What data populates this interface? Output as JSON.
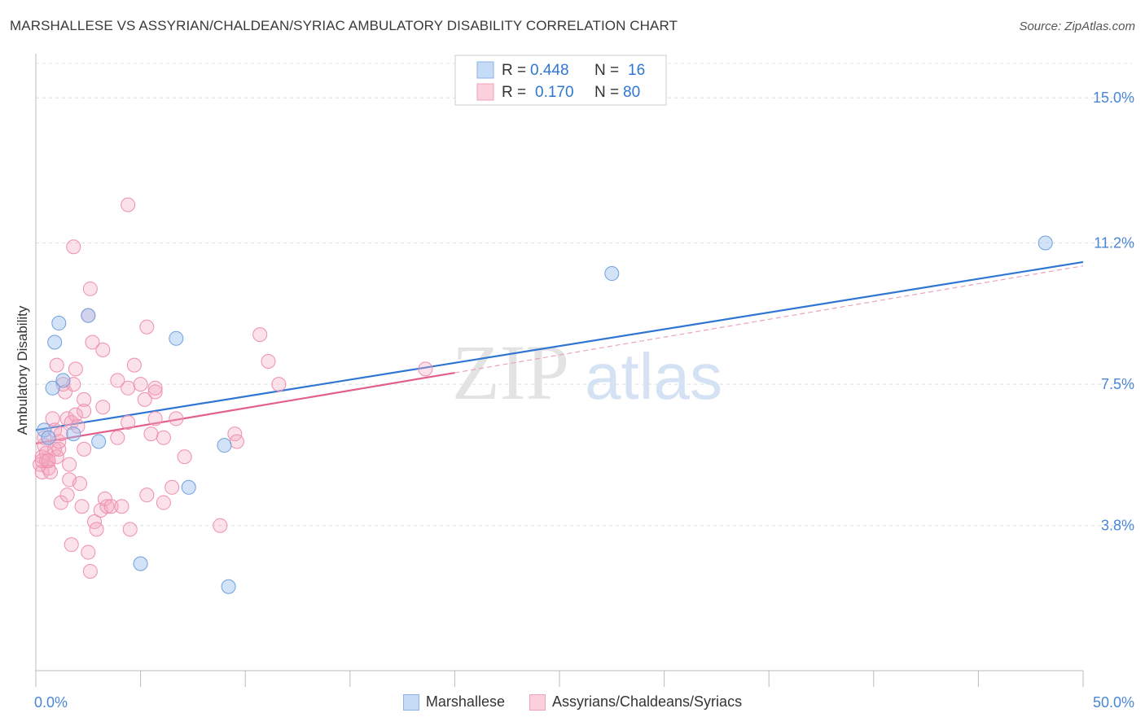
{
  "header": {
    "title": "MARSHALLESE VS ASSYRIAN/CHALDEAN/SYRIAC AMBULATORY DISABILITY CORRELATION CHART",
    "source": "Source: ZipAtlas.com"
  },
  "watermark": {
    "zip": "ZIP",
    "atlas": "atlas"
  },
  "legend": {
    "r_label": "R =",
    "n_label": "N =",
    "rows": [
      {
        "r": "0.448",
        "n": "16"
      },
      {
        "r": "0.170",
        "n": "80"
      }
    ]
  },
  "chart_data": {
    "type": "scatter",
    "title": "MARSHALLESE VS ASSYRIAN/CHALDEAN/SYRIAC AMBULATORY DISABILITY CORRELATION CHART",
    "xlabel": "",
    "ylabel": "Ambulatory Disability",
    "xlim": [
      0,
      50
    ],
    "ylim": [
      0,
      15.9
    ],
    "x_tick_labels": [
      "0.0%",
      "50.0%"
    ],
    "y_ticks": [
      3.8,
      7.5,
      11.2,
      15.0
    ],
    "y_tick_labels": [
      "3.8%",
      "7.5%",
      "11.2%",
      "15.0%"
    ],
    "colors": {
      "marshallese": "#9dc0ee",
      "marshallese_line": "#2f76d2",
      "assyrian": "#f4a9c0",
      "assyrian_line": "#e0608a",
      "axis_text": "#4a86d6"
    },
    "series": [
      {
        "name": "Marshallese",
        "r": 0.448,
        "n": 16,
        "trend": {
          "x0": 0,
          "y0": 6.3,
          "x1": 50,
          "y1": 10.7
        },
        "points": [
          [
            0.4,
            6.3
          ],
          [
            0.6,
            6.1
          ],
          [
            0.8,
            7.4
          ],
          [
            0.9,
            8.6
          ],
          [
            1.1,
            9.1
          ],
          [
            1.3,
            7.6
          ],
          [
            1.8,
            6.2
          ],
          [
            2.5,
            9.3
          ],
          [
            3.0,
            6.0
          ],
          [
            5.0,
            2.8
          ],
          [
            6.7,
            8.7
          ],
          [
            7.3,
            4.8
          ],
          [
            9.0,
            5.9
          ],
          [
            9.2,
            2.2
          ],
          [
            27.5,
            10.4
          ],
          [
            48.2,
            11.2
          ]
        ]
      },
      {
        "name": "Assyrians/Chaldeans/Syriacs",
        "r": 0.17,
        "n": 80,
        "trend": {
          "x0": 0,
          "y0": 5.95,
          "x1": 20,
          "y1": 7.8
        },
        "trend_dashed": {
          "x0": 20,
          "y0": 7.8,
          "x1": 50,
          "y1": 10.6
        },
        "points": [
          [
            0.2,
            5.4
          ],
          [
            0.3,
            5.6
          ],
          [
            0.3,
            5.2
          ],
          [
            0.4,
            5.9
          ],
          [
            0.4,
            6.1
          ],
          [
            0.5,
            5.5
          ],
          [
            0.5,
            5.7
          ],
          [
            0.6,
            5.3
          ],
          [
            0.6,
            5.5
          ],
          [
            0.7,
            5.2
          ],
          [
            0.8,
            6.6
          ],
          [
            0.9,
            6.3
          ],
          [
            0.9,
            5.8
          ],
          [
            1.0,
            8.0
          ],
          [
            1.0,
            5.6
          ],
          [
            1.1,
            5.8
          ],
          [
            1.1,
            6.0
          ],
          [
            1.2,
            4.4
          ],
          [
            1.3,
            7.5
          ],
          [
            1.4,
            7.3
          ],
          [
            1.5,
            6.6
          ],
          [
            1.5,
            4.6
          ],
          [
            1.6,
            5.4
          ],
          [
            1.6,
            5.0
          ],
          [
            1.7,
            6.5
          ],
          [
            1.7,
            3.3
          ],
          [
            1.8,
            7.5
          ],
          [
            1.9,
            7.9
          ],
          [
            1.9,
            6.7
          ],
          [
            2.0,
            6.4
          ],
          [
            1.8,
            11.1
          ],
          [
            2.1,
            4.9
          ],
          [
            2.2,
            4.3
          ],
          [
            2.3,
            5.8
          ],
          [
            2.3,
            6.8
          ],
          [
            2.3,
            7.1
          ],
          [
            2.5,
            3.1
          ],
          [
            2.5,
            9.3
          ],
          [
            2.6,
            10.0
          ],
          [
            2.6,
            2.6
          ],
          [
            2.7,
            8.6
          ],
          [
            2.8,
            3.9
          ],
          [
            2.9,
            3.7
          ],
          [
            3.1,
            4.2
          ],
          [
            3.2,
            8.4
          ],
          [
            3.2,
            6.9
          ],
          [
            3.3,
            4.5
          ],
          [
            3.4,
            4.3
          ],
          [
            3.6,
            4.3
          ],
          [
            3.9,
            7.6
          ],
          [
            3.9,
            6.1
          ],
          [
            4.1,
            4.3
          ],
          [
            4.4,
            12.2
          ],
          [
            4.4,
            7.4
          ],
          [
            4.4,
            6.5
          ],
          [
            4.5,
            3.7
          ],
          [
            4.7,
            8.0
          ],
          [
            5.0,
            7.5
          ],
          [
            5.2,
            7.1
          ],
          [
            5.3,
            9.0
          ],
          [
            5.3,
            4.6
          ],
          [
            5.5,
            6.2
          ],
          [
            5.7,
            7.3
          ],
          [
            5.7,
            7.4
          ],
          [
            5.7,
            6.6
          ],
          [
            6.1,
            6.1
          ],
          [
            6.1,
            4.4
          ],
          [
            6.5,
            4.8
          ],
          [
            6.7,
            6.6
          ],
          [
            7.1,
            5.6
          ],
          [
            8.8,
            3.8
          ],
          [
            9.5,
            6.2
          ],
          [
            9.6,
            6.0
          ],
          [
            10.7,
            8.8
          ],
          [
            11.1,
            8.1
          ],
          [
            11.6,
            7.5
          ],
          [
            18.6,
            7.9
          ],
          [
            0.3,
            5.5
          ],
          [
            0.6,
            5.5
          ],
          [
            1.2,
            6.2
          ]
        ]
      }
    ]
  }
}
